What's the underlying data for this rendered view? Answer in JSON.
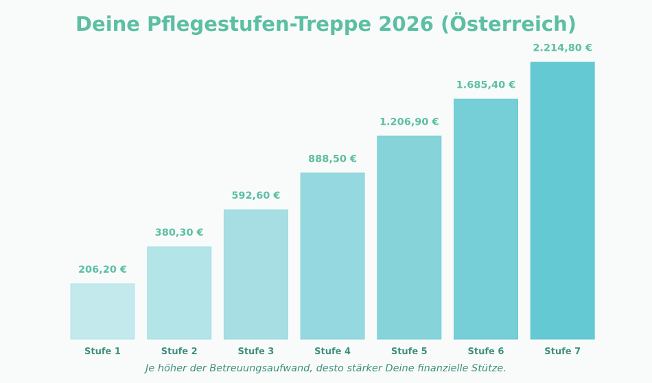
{
  "chart_data": {
    "type": "bar",
    "title": "Deine Pflegestufen-Treppe 2026 (Österreich)",
    "subtitle": "Je höher der Betreuungsaufwand, desto stärker Deine finanzielle Stütze.",
    "categories": [
      "Stufe 1",
      "Stufe 2",
      "Stufe 3",
      "Stufe 4",
      "Stufe 5",
      "Stufe 6",
      "Stufe 7"
    ],
    "values": [
      206.2,
      380.3,
      592.6,
      888.5,
      1206.9,
      1685.4,
      2214.8
    ],
    "data_labels": [
      "206,20 €",
      "380,30 €",
      "592,60 €",
      "888,50 €",
      "1.206,90 €",
      "1.685,40 €",
      "2.214,80 €"
    ],
    "unit": "€",
    "bar_heights": "staircase (equal steps per level)",
    "grid": false,
    "colors": [
      "#c3e9ec",
      "#b3e4e8",
      "#a6dee3",
      "#96d8df",
      "#86d3da",
      "#76ced6",
      "#64c9d2"
    ],
    "label_color": "#5cbfa3",
    "tick_color": "#3f8f7c"
  }
}
